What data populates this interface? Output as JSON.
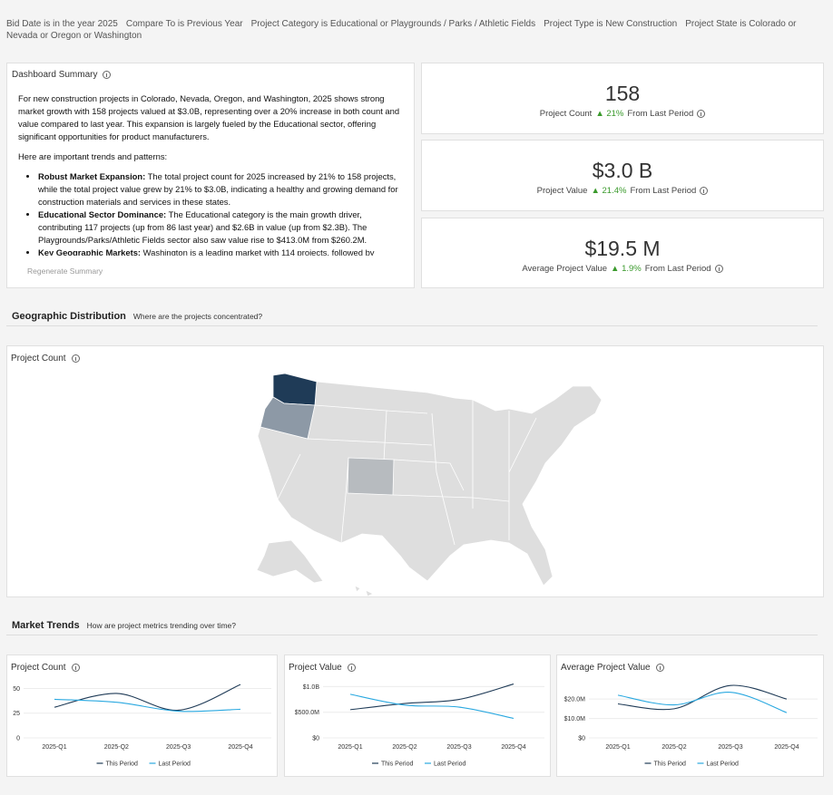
{
  "filters": [
    "Bid Date is in the year 2025",
    "Compare To is Previous Year",
    "Project Category is Educational or Playgrounds / Parks / Athletic Fields",
    "Project Type is New Construction",
    "Project State is Colorado or Nevada or Oregon or Washington"
  ],
  "summary": {
    "title": "Dashboard Summary",
    "paragraph": "For new construction projects in Colorado, Nevada, Oregon, and Washington, 2025 shows strong market growth with 158 projects valued at $3.0B, representing over a 20% increase in both count and value compared to last year. This expansion is largely fueled by the Educational sector, offering significant opportunities for product manufacturers.",
    "intro": "Here are important trends and patterns:",
    "bullets": [
      {
        "label": "Robust Market Expansion:",
        "text": "The total project count for 2025 increased by 21% to 158 projects, while the total project value grew by 21% to $3.0B, indicating a healthy and growing demand for construction materials and services in these states."
      },
      {
        "label": "Educational Sector Dominance:",
        "text": "The Educational category is the main growth driver, contributing 117 projects (up from 86 last year) and $2.6B in value (up from $2.3B). The Playgrounds/Parks/Athletic Fields sector also saw value rise to $413.0M from $260.2M."
      },
      {
        "label": "Key Geographic Markets:",
        "text": "Washington is a leading market with 114 projects, followed by"
      }
    ],
    "action": "Regenerate Summary"
  },
  "kpis": [
    {
      "value": "158",
      "label": "Project Count",
      "change": "▲ 21%",
      "suffix": "From Last Period"
    },
    {
      "value": "$3.0 B",
      "label": "Project Value",
      "change": "▲ 21.4%",
      "suffix": "From Last Period"
    },
    {
      "value": "$19.5 M",
      "label": "Average Project Value",
      "change": "▲ 1.9%",
      "suffix": "From Last Period"
    }
  ],
  "geo": {
    "title": "Geographic Distribution",
    "subtitle": "Where are the projects concentrated?",
    "map_title": "Project Count"
  },
  "trends": {
    "title": "Market Trends",
    "subtitle": "How are project metrics trending over time?"
  },
  "chart_data": [
    {
      "type": "line",
      "title": "Project Count",
      "categories": [
        "2025-Q1",
        "2025-Q2",
        "2025-Q3",
        "2025-Q4"
      ],
      "series": [
        {
          "name": "This Period",
          "color": "#1f3b57",
          "values": [
            31,
            45,
            28,
            54
          ]
        },
        {
          "name": "Last Period",
          "color": "#29a8e0",
          "values": [
            39,
            36,
            27,
            29
          ]
        }
      ],
      "ylim": [
        0,
        55
      ],
      "yticks": [
        0,
        25,
        50
      ],
      "grid": true
    },
    {
      "type": "line",
      "title": "Project Value",
      "categories": [
        "2025-Q1",
        "2025-Q2",
        "2025-Q3",
        "2025-Q4"
      ],
      "series": [
        {
          "name": "This Period",
          "color": "#1f3b57",
          "values": [
            550000000,
            670000000,
            750000000,
            1050000000
          ]
        },
        {
          "name": "Last Period",
          "color": "#29a8e0",
          "values": [
            850000000,
            640000000,
            600000000,
            380000000
          ]
        }
      ],
      "ylim": [
        0,
        1060000000
      ],
      "yticks": [
        {
          "value": 0,
          "label": "$0"
        },
        {
          "value": 500000000,
          "label": "$500.0M"
        },
        {
          "value": 1000000000,
          "label": "$1.0B"
        }
      ],
      "grid": true
    },
    {
      "type": "line",
      "title": "Average Project Value",
      "categories": [
        "2025-Q1",
        "2025-Q2",
        "2025-Q3",
        "2025-Q4"
      ],
      "series": [
        {
          "name": "This Period",
          "color": "#1f3b57",
          "values": [
            17500000,
            15000000,
            27000000,
            20000000
          ]
        },
        {
          "name": "Last Period",
          "color": "#29a8e0",
          "values": [
            22000000,
            17000000,
            23500000,
            13000000
          ]
        }
      ],
      "ylim": [
        0,
        28000000
      ],
      "yticks": [
        {
          "value": 0,
          "label": "$0"
        },
        {
          "value": 10000000,
          "label": "$10.0M"
        },
        {
          "value": 20000000,
          "label": "$20.0M"
        }
      ],
      "grid": true
    }
  ]
}
